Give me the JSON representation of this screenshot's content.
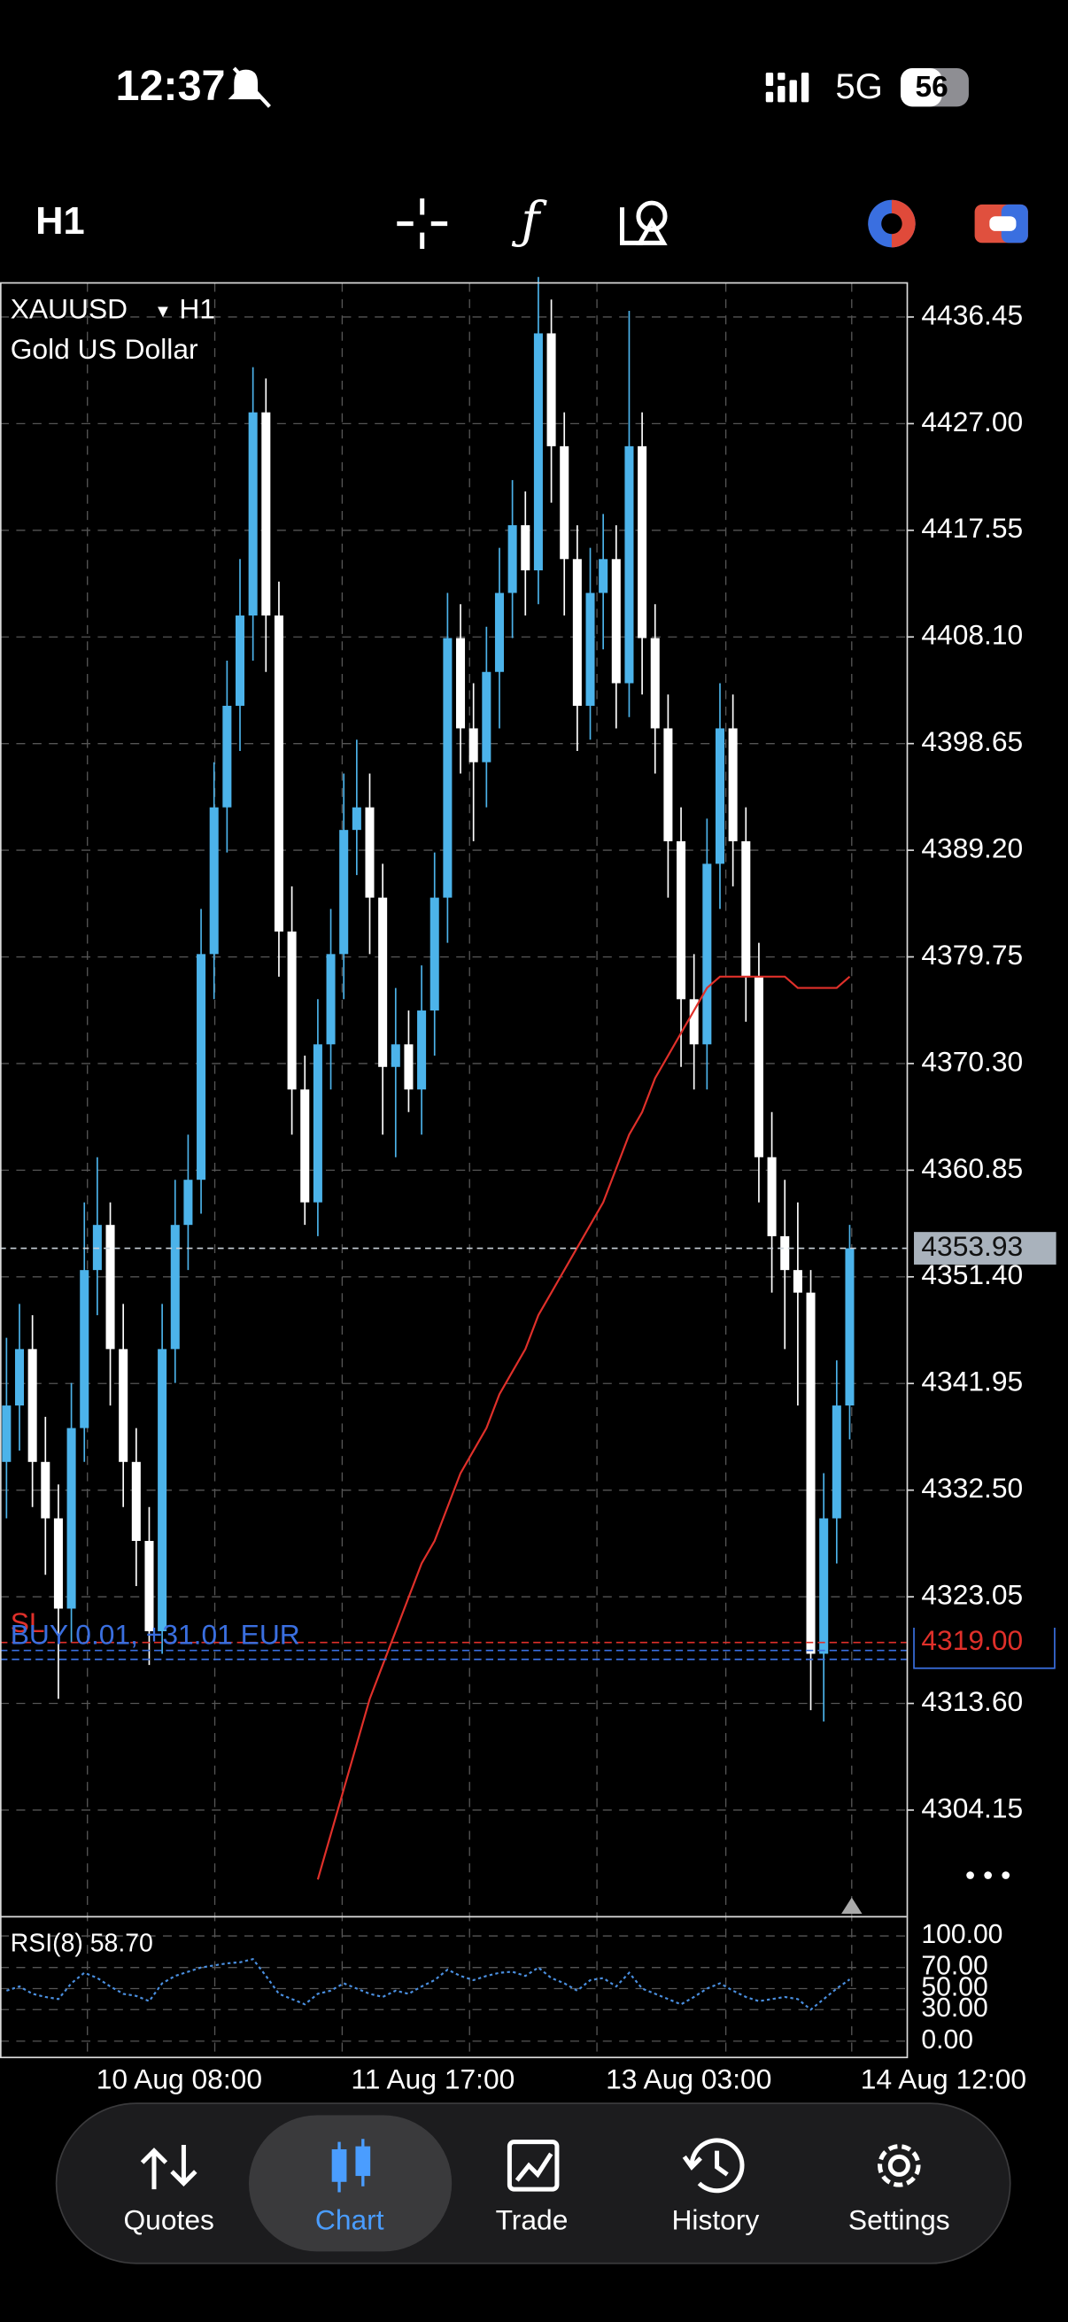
{
  "status_bar": {
    "time": "12:37",
    "network": "5G",
    "battery": "56"
  },
  "toolbar": {
    "timeframe": "H1"
  },
  "chart_data": {
    "type": "candlestick",
    "symbol": "XAUUSD",
    "timeframe": "H1",
    "description": "Gold US Dollar",
    "bull_color": "#4cb3ea",
    "bear_color": "#ffffff",
    "open": [
      4335,
      4340,
      4345,
      4335,
      4330,
      4322,
      4338,
      4352,
      4356,
      4345,
      4335,
      4328,
      4320,
      4345,
      4356,
      4360,
      4380,
      4393,
      4402,
      4410,
      4428,
      4410,
      4382,
      4368,
      4358,
      4372,
      4380,
      4391,
      4393,
      4385,
      4370,
      4372,
      4368,
      4375,
      4385,
      4408,
      4400,
      4397,
      4405,
      4412,
      4418,
      4414,
      4435,
      4425,
      4415,
      4402,
      4412,
      4415,
      4404,
      4425,
      4408,
      4400,
      4390,
      4376,
      4372,
      4388,
      4400,
      4390,
      4378,
      4362,
      4355,
      4352,
      4350,
      4318,
      4330,
      4340
    ],
    "high": [
      4346,
      4349,
      4348,
      4339,
      4333,
      4342,
      4358,
      4362,
      4358,
      4349,
      4338,
      4331,
      4349,
      4360,
      4364,
      4384,
      4397,
      4406,
      4415,
      4432,
      4431,
      4413,
      4386,
      4371,
      4376,
      4384,
      4396,
      4399,
      4396,
      4388,
      4377,
      4375,
      4379,
      4389,
      4412,
      4411,
      4404,
      4409,
      4416,
      4422,
      4421,
      4440,
      4438,
      4428,
      4418,
      4416,
      4419,
      4418,
      4437,
      4428,
      4411,
      4403,
      4393,
      4380,
      4392,
      4404,
      4403,
      4393,
      4381,
      4366,
      4360,
      4358,
      4352,
      4334,
      4344,
      4356
    ],
    "low": [
      4330,
      4336,
      4331,
      4325,
      4314,
      4319,
      4335,
      4348,
      4340,
      4331,
      4324,
      4317,
      4318,
      4342,
      4352,
      4357,
      4376,
      4389,
      4398,
      4406,
      4405,
      4378,
      4364,
      4356,
      4355,
      4368,
      4376,
      4387,
      4380,
      4364,
      4362,
      4366,
      4364,
      4371,
      4381,
      4396,
      4390,
      4393,
      4400,
      4408,
      4410,
      4411,
      4420,
      4410,
      4398,
      4399,
      4407,
      4400,
      4401,
      4403,
      4396,
      4385,
      4370,
      4368,
      4368,
      4384,
      4386,
      4374,
      4358,
      4350,
      4345,
      4340,
      4313,
      4312,
      4326,
      4337
    ],
    "close": [
      4340,
      4345,
      4335,
      4330,
      4322,
      4338,
      4352,
      4356,
      4345,
      4335,
      4328,
      4320,
      4345,
      4356,
      4360,
      4380,
      4393,
      4402,
      4410,
      4428,
      4410,
      4382,
      4368,
      4358,
      4372,
      4380,
      4391,
      4393,
      4385,
      4370,
      4372,
      4368,
      4375,
      4385,
      4408,
      4400,
      4397,
      4405,
      4412,
      4418,
      4414,
      4435,
      4425,
      4415,
      4402,
      4412,
      4415,
      4404,
      4425,
      4408,
      4400,
      4390,
      4376,
      4372,
      4388,
      4400,
      4390,
      4378,
      4362,
      4355,
      4352,
      4350,
      4318,
      4330,
      4340,
      4353.93
    ],
    "moving_average": {
      "color": "#e0302a",
      "values": [
        null,
        null,
        null,
        null,
        null,
        null,
        null,
        null,
        null,
        null,
        null,
        null,
        null,
        null,
        null,
        null,
        null,
        null,
        null,
        null,
        null,
        null,
        null,
        null,
        4298,
        4302,
        4306,
        4310,
        4314,
        4317,
        4320,
        4323,
        4326,
        4328,
        4331,
        4334,
        4336,
        4338,
        4341,
        4343,
        4345,
        4348,
        4350,
        4352,
        4354,
        4356,
        4358,
        4361,
        4364,
        4366,
        4369,
        4371,
        4373,
        4375,
        4377,
        4378,
        4378,
        4378,
        4378,
        4378,
        4378,
        4377,
        4377,
        4377,
        4377,
        4378
      ]
    },
    "ylim": [
      4294.7,
      4439.47
    ],
    "yticks": [
      4436.45,
      {
        "value": 4427,
        "label": "4427.00"
      },
      4417.55,
      {
        "value": 4408.1,
        "label": "4408.10"
      },
      4398.65,
      {
        "value": 4389.2,
        "label": "4389.20"
      },
      4379.75,
      {
        "value": 4370.3,
        "label": "4370.30"
      },
      4360.85,
      {
        "value": 4351.4,
        "label": "4351.40"
      },
      4341.95,
      {
        "value": 4332.5,
        "label": "4332.50"
      },
      4323.05,
      {
        "value": 4313.6,
        "label": "4313.60"
      },
      4304.15
    ],
    "grid": true,
    "current_price": 4353.93,
    "stop_loss": {
      "label": "SL",
      "value": 4319,
      "price_label": "4319.00",
      "color": "#e0302a"
    },
    "position": {
      "label": "BUY 0.01, +31.01 EUR",
      "price": 4317.9,
      "color": "#3a6fe0"
    },
    "x_labels": [
      "10 Aug 08:00",
      "11 Aug 17:00",
      "13 Aug 03:00",
      "14 Aug 12:00"
    ],
    "rsi": {
      "label": "RSI(8) 58.70",
      "color": "#4a8fe0",
      "ylim": [
        -15.5,
        118.3
      ],
      "yticks": [
        {
          "value": 100,
          "label": "100.00"
        },
        {
          "value": 70,
          "label": "70.00"
        },
        {
          "value": 50,
          "label": "50.00"
        },
        {
          "value": 30,
          "label": "30.00"
        },
        {
          "value": 0,
          "label": "0.00"
        }
      ],
      "values": [
        48,
        52,
        45,
        42,
        40,
        55,
        65,
        60,
        52,
        45,
        43,
        38,
        55,
        62,
        66,
        70,
        72,
        74,
        75,
        78,
        62,
        45,
        40,
        35,
        45,
        48,
        55,
        50,
        45,
        42,
        48,
        45,
        52,
        58,
        68,
        62,
        58,
        62,
        65,
        66,
        62,
        70,
        60,
        55,
        48,
        58,
        60,
        52,
        65,
        50,
        45,
        40,
        35,
        42,
        50,
        55,
        48,
        42,
        38,
        40,
        42,
        40,
        30,
        40,
        50,
        58.7
      ]
    }
  },
  "nav": {
    "items": [
      "Quotes",
      "Chart",
      "Trade",
      "History",
      "Settings"
    ]
  }
}
